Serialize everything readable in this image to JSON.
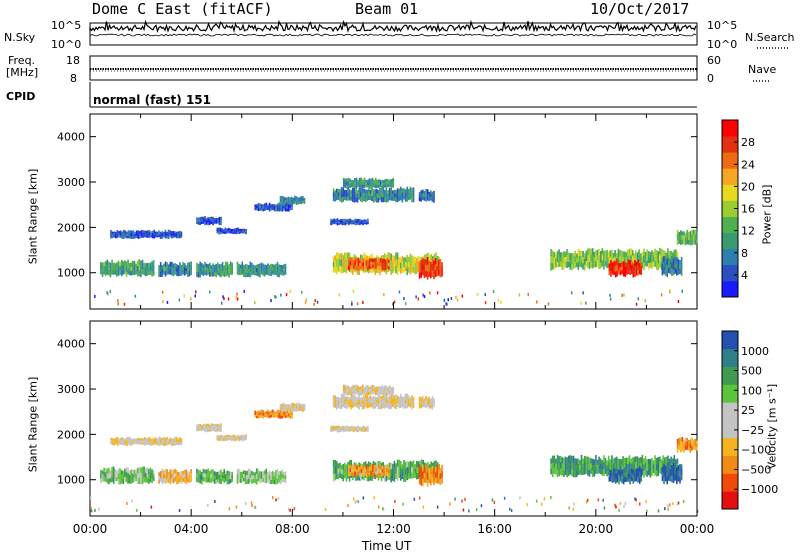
{
  "header": {
    "station": "Dome C East (fitACF)",
    "beam": "Beam 01",
    "date": "10/Oct/2017"
  },
  "top_panels": {
    "nsky_label": "N.Sky",
    "nsky_ticks": [
      "10^5",
      "10^0"
    ],
    "nsearch_label": "N.Search",
    "freq_label_1": "Freq.",
    "freq_label_2": "[MHz]",
    "freq_ticks": [
      "18",
      "8"
    ],
    "nave_label": "Nave",
    "nave_ticks": [
      "60",
      "0"
    ],
    "cpid_label": "CPID",
    "cpid_value": "normal (fast) 151"
  },
  "x_axis": {
    "label": "Time UT",
    "ticks": [
      "00:00",
      "04:00",
      "08:00",
      "12:00",
      "16:00",
      "20:00",
      "00:00"
    ]
  },
  "chart_data": [
    {
      "type": "heatmap",
      "name": "power-panel",
      "ylabel": "Slant Range [km]",
      "yticks": [
        "4000",
        "3000",
        "2000",
        "1000"
      ],
      "ylim": [
        200,
        4500
      ],
      "xlim_hours": [
        0,
        24
      ],
      "colorbar_label": "Power [dB]",
      "colorbar_ticks": [
        "28",
        "24",
        "20",
        "16",
        "12",
        "8",
        "4"
      ],
      "colors": [
        "#1a1aff",
        "#2a4fbf",
        "#2e7fb0",
        "#3a9a70",
        "#50b050",
        "#9acd32",
        "#e8d820",
        "#f5a623",
        "#ef6a15",
        "#e23010",
        "#ff0000"
      ],
      "patches": [
        {
          "t0": 0.4,
          "t1": 2.5,
          "r0": 900,
          "r1": 1300,
          "v": 0.35
        },
        {
          "t0": 2.7,
          "t1": 4.0,
          "r0": 900,
          "r1": 1250,
          "v": 0.25
        },
        {
          "t0": 4.2,
          "t1": 5.6,
          "r0": 900,
          "r1": 1250,
          "v": 0.3
        },
        {
          "t0": 5.8,
          "t1": 7.7,
          "r0": 900,
          "r1": 1250,
          "v": 0.3
        },
        {
          "t0": 0.8,
          "t1": 3.6,
          "r0": 1750,
          "r1": 1950,
          "v": 0.15
        },
        {
          "t0": 4.2,
          "t1": 5.2,
          "r0": 2050,
          "r1": 2250,
          "v": 0.15
        },
        {
          "t0": 5.0,
          "t1": 6.2,
          "r0": 1850,
          "r1": 2000,
          "v": 0.12
        },
        {
          "t0": 9.5,
          "t1": 11.0,
          "r0": 2050,
          "r1": 2200,
          "v": 0.15
        },
        {
          "t0": 9.6,
          "t1": 12.8,
          "r0": 2550,
          "r1": 2900,
          "v": 0.25
        },
        {
          "t0": 10.0,
          "t1": 12.0,
          "r0": 2850,
          "r1": 3100,
          "v": 0.3
        },
        {
          "t0": 13.0,
          "t1": 13.6,
          "r0": 2550,
          "r1": 2850,
          "v": 0.2
        },
        {
          "t0": 9.6,
          "t1": 13.8,
          "r0": 950,
          "r1": 1450,
          "v": 0.55
        },
        {
          "t0": 10.2,
          "t1": 11.8,
          "r0": 1050,
          "r1": 1350,
          "v": 0.8
        },
        {
          "t0": 13.0,
          "t1": 13.9,
          "r0": 850,
          "r1": 1350,
          "v": 0.85
        },
        {
          "t0": 18.2,
          "t1": 23.2,
          "r0": 1050,
          "r1": 1550,
          "v": 0.45
        },
        {
          "t0": 20.5,
          "t1": 21.8,
          "r0": 900,
          "r1": 1300,
          "v": 0.9
        },
        {
          "t0": 22.6,
          "t1": 23.4,
          "r0": 900,
          "r1": 1400,
          "v": 0.25
        },
        {
          "t0": 23.2,
          "t1": 24.0,
          "r0": 1600,
          "r1": 1950,
          "v": 0.4
        },
        {
          "t0": 6.5,
          "t1": 8.0,
          "r0": 2350,
          "r1": 2550,
          "v": 0.15
        },
        {
          "t0": 7.5,
          "t1": 8.5,
          "r0": 2500,
          "r1": 2700,
          "v": 0.25
        }
      ]
    },
    {
      "type": "heatmap",
      "name": "velocity-panel",
      "ylabel": "Slant Range [km]",
      "yticks": [
        "4000",
        "3000",
        "2000",
        "1000"
      ],
      "ylim": [
        200,
        4500
      ],
      "xlim_hours": [
        0,
        24
      ],
      "colorbar_label": "Velocity [m s⁻¹]",
      "colorbar_ticks": [
        "1000",
        "500",
        "100",
        "25",
        "−25",
        "−100",
        "−500",
        "−1000"
      ],
      "colors": [
        "#e41010",
        "#f04a0a",
        "#f28a1a",
        "#f5b31f",
        "#c4c4c4",
        "#c4c4c4",
        "#5cc43a",
        "#3f9b50",
        "#2f7f8a",
        "#2450b0"
      ],
      "patches": [
        {
          "t0": 0.4,
          "t1": 2.5,
          "r0": 900,
          "r1": 1300,
          "v": 0.65
        },
        {
          "t0": 2.7,
          "t1": 4.0,
          "r0": 900,
          "r1": 1250,
          "v": 0.35
        },
        {
          "t0": 4.2,
          "t1": 5.6,
          "r0": 900,
          "r1": 1250,
          "v": 0.7
        },
        {
          "t0": 5.8,
          "t1": 7.7,
          "r0": 900,
          "r1": 1250,
          "v": 0.6
        },
        {
          "t0": 0.8,
          "t1": 3.6,
          "r0": 1750,
          "r1": 1950,
          "v": 0.45
        },
        {
          "t0": 4.2,
          "t1": 5.2,
          "r0": 2050,
          "r1": 2250,
          "v": 0.45
        },
        {
          "t0": 5.0,
          "t1": 6.2,
          "r0": 1850,
          "r1": 2000,
          "v": 0.45
        },
        {
          "t0": 9.5,
          "t1": 11.0,
          "r0": 2050,
          "r1": 2200,
          "v": 0.45
        },
        {
          "t0": 9.6,
          "t1": 12.8,
          "r0": 2550,
          "r1": 2900,
          "v": 0.45
        },
        {
          "t0": 10.0,
          "t1": 12.0,
          "r0": 2850,
          "r1": 3100,
          "v": 0.45
        },
        {
          "t0": 13.0,
          "t1": 13.6,
          "r0": 2550,
          "r1": 2850,
          "v": 0.45
        },
        {
          "t0": 9.6,
          "t1": 13.8,
          "r0": 950,
          "r1": 1450,
          "v": 0.7
        },
        {
          "t0": 10.2,
          "t1": 11.8,
          "r0": 1050,
          "r1": 1350,
          "v": 0.3
        },
        {
          "t0": 13.0,
          "t1": 13.9,
          "r0": 850,
          "r1": 1350,
          "v": 0.25
        },
        {
          "t0": 18.2,
          "t1": 23.2,
          "r0": 1050,
          "r1": 1550,
          "v": 0.75
        },
        {
          "t0": 20.5,
          "t1": 21.8,
          "r0": 900,
          "r1": 1300,
          "v": 0.9
        },
        {
          "t0": 22.6,
          "t1": 23.4,
          "r0": 900,
          "r1": 1400,
          "v": 0.95
        },
        {
          "t0": 23.2,
          "t1": 24.0,
          "r0": 1600,
          "r1": 1950,
          "v": 0.3
        },
        {
          "t0": 6.5,
          "t1": 8.0,
          "r0": 2350,
          "r1": 2550,
          "v": 0.25
        },
        {
          "t0": 7.5,
          "t1": 8.5,
          "r0": 2500,
          "r1": 2700,
          "v": 0.45
        }
      ]
    }
  ]
}
